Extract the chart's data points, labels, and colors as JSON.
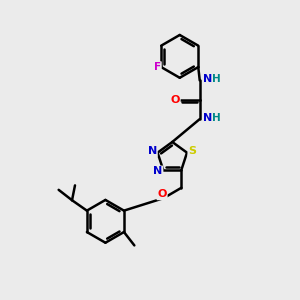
{
  "background_color": "#ebebeb",
  "atoms": {
    "C": "#000000",
    "N": "#0000cc",
    "O": "#ff0000",
    "S": "#cccc00",
    "F": "#cc00cc",
    "H": "#008888"
  },
  "bond_color": "#000000",
  "bond_lw": 1.8,
  "font_size": 7.5,
  "xlim": [
    0,
    10
  ],
  "ylim": [
    0,
    10
  ]
}
